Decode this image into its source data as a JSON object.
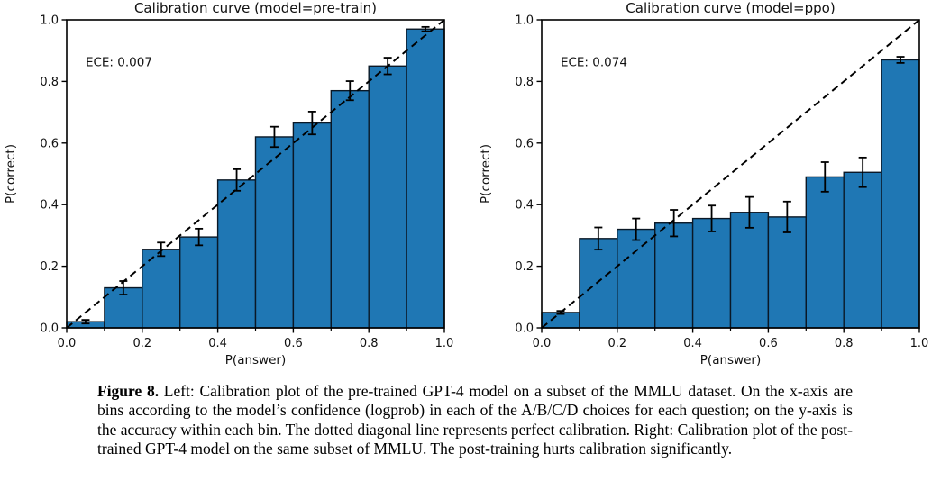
{
  "chart_data": [
    {
      "type": "bar",
      "title": "Calibration curve (model=pre-train)",
      "annotation": "ECE: 0.007",
      "xlabel": "P(answer)",
      "ylabel": "P(correct)",
      "xlim": [
        0.0,
        1.0
      ],
      "ylim": [
        0.0,
        1.0
      ],
      "grid": false,
      "legend": "none",
      "bar_color": "#1f77b4",
      "bar_edge_color": "#0a1826",
      "bin_edges": [
        0.0,
        0.1,
        0.2,
        0.3,
        0.4,
        0.5,
        0.6,
        0.7,
        0.8,
        0.9,
        1.0
      ],
      "bin_centers": [
        0.05,
        0.15,
        0.25,
        0.35,
        0.45,
        0.55,
        0.65,
        0.75,
        0.85,
        0.95
      ],
      "values": [
        0.02,
        0.13,
        0.255,
        0.295,
        0.48,
        0.62,
        0.665,
        0.77,
        0.85,
        0.97
      ],
      "errors": [
        0.006,
        0.022,
        0.022,
        0.027,
        0.035,
        0.033,
        0.037,
        0.031,
        0.027,
        0.007
      ],
      "x_major_ticks": [
        0.0,
        0.2,
        0.4,
        0.6,
        0.8,
        1.0
      ],
      "x_minor_ticks": [
        0.1,
        0.3,
        0.5,
        0.7,
        0.9
      ],
      "y_ticks": [
        0.0,
        0.2,
        0.4,
        0.6,
        0.8,
        1.0
      ],
      "diagonal_line": {
        "from": [
          0,
          0
        ],
        "to": [
          1,
          1
        ],
        "style": "dashed",
        "color": "#000000"
      }
    },
    {
      "type": "bar",
      "title": "Calibration curve (model=ppo)",
      "annotation": "ECE: 0.074",
      "xlabel": "P(answer)",
      "ylabel": "P(correct)",
      "xlim": [
        0.0,
        1.0
      ],
      "ylim": [
        0.0,
        1.0
      ],
      "grid": false,
      "legend": "none",
      "bar_color": "#1f77b4",
      "bar_edge_color": "#0a1826",
      "bin_edges": [
        0.0,
        0.1,
        0.2,
        0.3,
        0.4,
        0.5,
        0.6,
        0.7,
        0.8,
        0.9,
        1.0
      ],
      "bin_centers": [
        0.05,
        0.15,
        0.25,
        0.35,
        0.45,
        0.55,
        0.65,
        0.75,
        0.85,
        0.95
      ],
      "values": [
        0.05,
        0.29,
        0.32,
        0.34,
        0.355,
        0.375,
        0.36,
        0.49,
        0.505,
        0.87
      ],
      "errors": [
        0.005,
        0.036,
        0.035,
        0.043,
        0.042,
        0.05,
        0.05,
        0.048,
        0.048,
        0.01
      ],
      "x_major_ticks": [
        0.0,
        0.2,
        0.4,
        0.6,
        0.8,
        1.0
      ],
      "x_minor_ticks": [
        0.1,
        0.3,
        0.5,
        0.7,
        0.9
      ],
      "y_ticks": [
        0.0,
        0.2,
        0.4,
        0.6,
        0.8,
        1.0
      ],
      "diagonal_line": {
        "from": [
          0,
          0
        ],
        "to": [
          1,
          1
        ],
        "style": "dashed",
        "color": "#000000"
      }
    }
  ],
  "caption": {
    "label": "Figure 8.",
    "text": " Left: Calibration plot of the pre-trained GPT-4 model on a subset of the MMLU dataset. On the x-axis are bins according to the model’s confidence (logprob) in each of the A/B/C/D choices for each question; on the y-axis is the accuracy within each bin. The dotted diagonal line represents perfect calibration. Right: Calibration plot of the post-trained GPT-4 model on the same subset of MMLU. The post-training hurts calibration significantly."
  }
}
